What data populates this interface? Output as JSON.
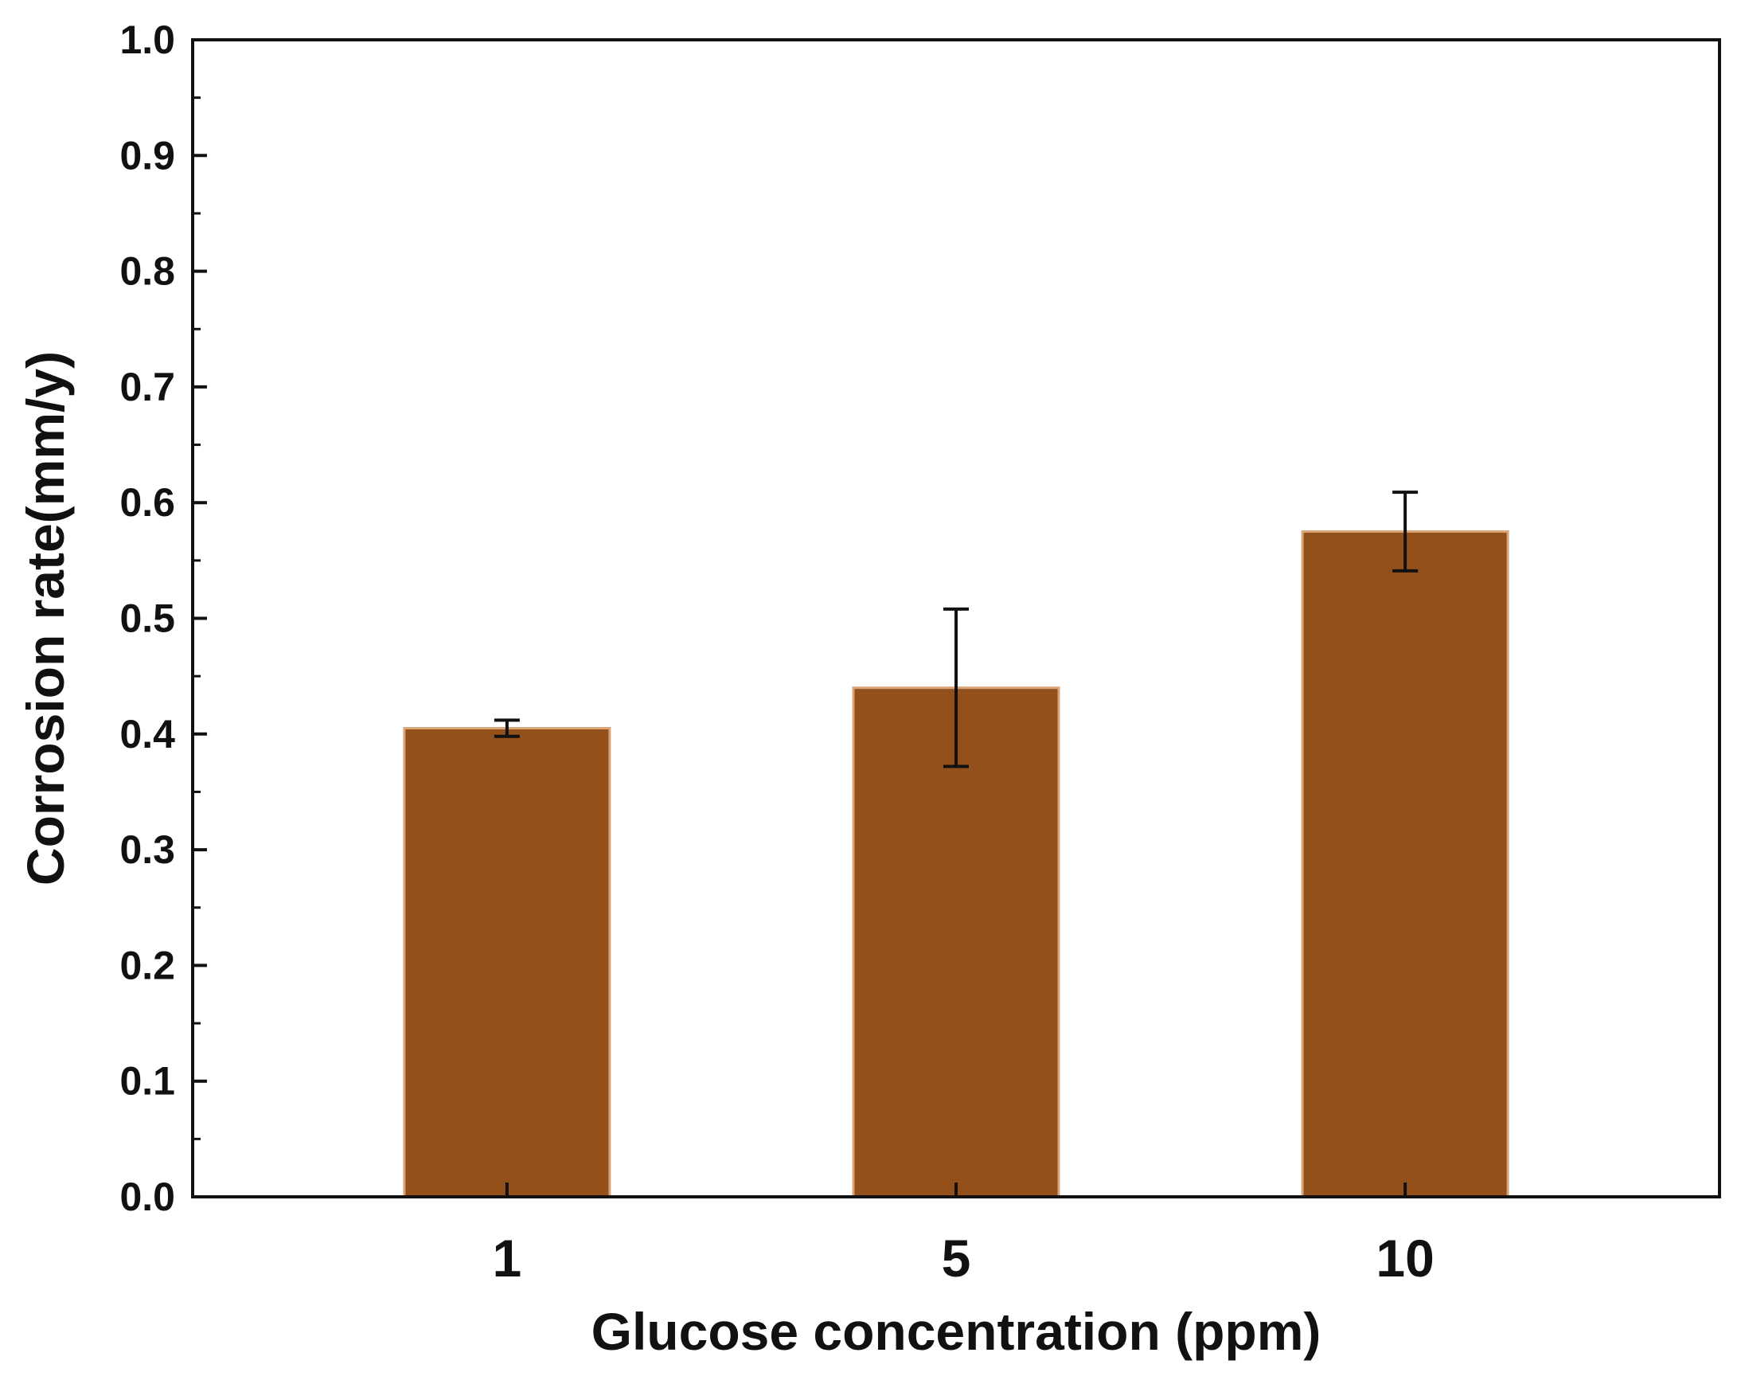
{
  "chart_data": {
    "type": "bar",
    "title": "",
    "xlabel": "Glucose concentration (ppm)",
    "ylabel": "Corrosion rate(mm/y)",
    "categories": [
      "1",
      "5",
      "10"
    ],
    "values": [
      0.405,
      0.44,
      0.575
    ],
    "errors": [
      0.007,
      0.068,
      0.034
    ],
    "ylim": [
      0.0,
      1.0
    ],
    "yticks": [
      "0.0",
      "0.1",
      "0.2",
      "0.3",
      "0.4",
      "0.5",
      "0.6",
      "0.7",
      "0.8",
      "0.9",
      "1.0"
    ],
    "grid": false,
    "legend": "none",
    "bar_color": "#93501b",
    "bar_edge_color": "#d9a578",
    "error_bar_color": "#111111",
    "axis_color": "#111111"
  }
}
